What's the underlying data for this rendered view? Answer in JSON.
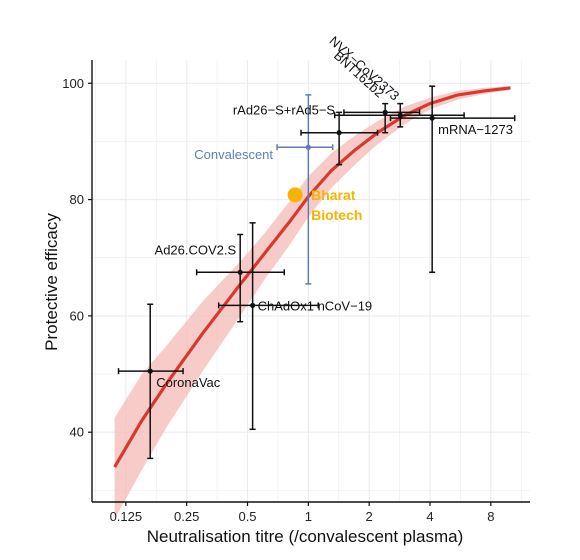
{
  "chart_data": {
    "type": "scatter",
    "title": "",
    "xlabel": "Neutralisation titre (/convalescent plasma)",
    "ylabel": "Protective efficacy",
    "x_scale": "log2",
    "xlim": [
      0.085,
      12.5
    ],
    "ylim": [
      28,
      104
    ],
    "x_ticks": [
      0.125,
      0.25,
      0.5,
      1,
      2,
      4,
      8
    ],
    "x_tick_labels": [
      "0.125",
      "0.25",
      "0.5",
      "1",
      "2",
      "4",
      "8"
    ],
    "y_ticks": [
      40,
      60,
      80,
      100
    ],
    "y_tick_labels": [
      "40",
      "60",
      "80",
      "100"
    ],
    "grid": true,
    "colors": {
      "curve": "#d63a2f",
      "band": "#f4b9b5",
      "points": "#111111",
      "convalescent": "#5b7fb5",
      "highlight": "#f5b400",
      "grid": "#ebebf3",
      "axis": "#111111"
    },
    "fit_curve": {
      "x": [
        0.11,
        0.15,
        0.2,
        0.3,
        0.45,
        0.6,
        0.8,
        1.0,
        1.3,
        1.7,
        2.2,
        3.0,
        4.0,
        5.5,
        7.5,
        10.0
      ],
      "y": [
        34,
        42,
        48.5,
        57,
        65,
        70.5,
        76,
        80.5,
        85,
        88.5,
        91.5,
        94.5,
        96.5,
        98,
        98.7,
        99.2
      ],
      "band_lower": [
        25,
        33.5,
        41,
        50.5,
        59.5,
        66,
        72,
        77,
        82,
        86,
        89.5,
        93,
        95.5,
        97.2,
        98.2,
        98.8
      ],
      "band_upper": [
        42.5,
        50,
        55,
        62.5,
        69,
        74,
        79.5,
        84,
        88,
        91,
        93.5,
        96,
        97.5,
        98.7,
        99.2,
        99.5
      ]
    },
    "points": [
      {
        "label": "CoronaVac",
        "x": 0.165,
        "y": 50.5,
        "x_lo": 0.115,
        "x_hi": 0.24,
        "y_lo": 35.5,
        "y_hi": 62,
        "group": "vaccine",
        "label_pos": "below-right"
      },
      {
        "label": "Ad26.COV2.S",
        "x": 0.46,
        "y": 67.5,
        "x_lo": 0.28,
        "x_hi": 0.76,
        "y_lo": 59,
        "y_hi": 74,
        "group": "vaccine",
        "label_pos": "above-left"
      },
      {
        "label": "ChAdOx1 nCoV−19",
        "x": 0.53,
        "y": 61.8,
        "x_lo": 0.36,
        "x_hi": 1.12,
        "y_lo": 40.5,
        "y_hi": 76,
        "group": "vaccine",
        "label_pos": "right"
      },
      {
        "label": "Convalescent",
        "x": 1.0,
        "y": 89.0,
        "x_lo": 0.7,
        "x_hi": 1.32,
        "y_lo": 65.5,
        "y_hi": 98,
        "group": "convalescent",
        "label_pos": "left"
      },
      {
        "label": "rAd26−S+rAd5−S",
        "x": 1.42,
        "y": 91.5,
        "x_lo": 0.92,
        "x_hi": 2.2,
        "y_lo": 86,
        "y_hi": 95,
        "group": "vaccine",
        "label_pos": "above-left"
      },
      {
        "label": "BNT162b2",
        "x": 2.4,
        "y": 95.0,
        "x_lo": 1.5,
        "x_hi": 3.55,
        "y_lo": 91.5,
        "y_hi": 96.5,
        "group": "vaccine",
        "label_pos": "rotated"
      },
      {
        "label": "NVX−CoV2373",
        "x": 2.85,
        "y": 94.5,
        "x_lo": 1.35,
        "x_hi": 5.9,
        "y_lo": 92.5,
        "y_hi": 96.5,
        "group": "vaccine",
        "label_pos": "rotated"
      },
      {
        "label": "mRNA−1273",
        "x": 4.1,
        "y": 94.0,
        "x_lo": 2.55,
        "x_hi": 10.5,
        "y_lo": 67.5,
        "y_hi": 99.5,
        "group": "vaccine",
        "label_pos": "below-right"
      }
    ],
    "highlight": {
      "label_lines": [
        "Bharat",
        "Biotech"
      ],
      "x": 0.86,
      "y": 80.8
    }
  }
}
